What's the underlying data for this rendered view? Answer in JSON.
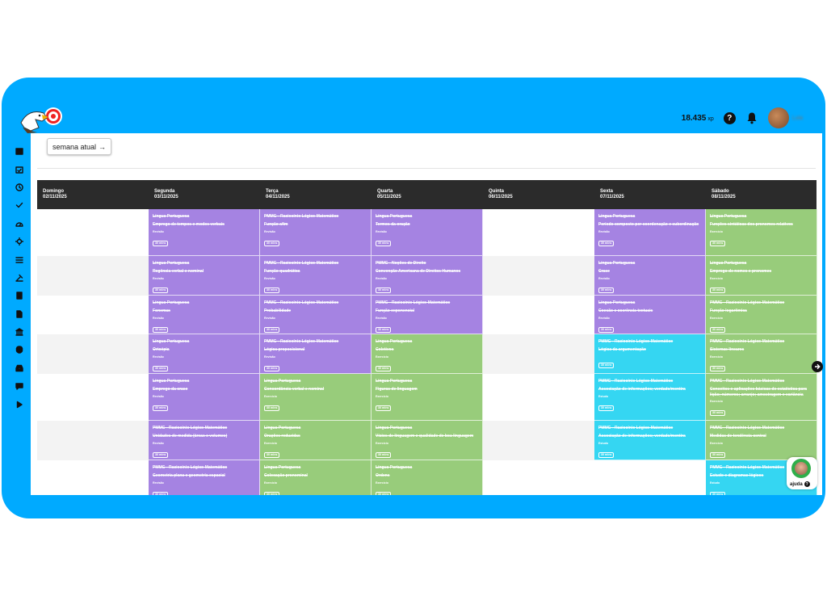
{
  "header": {
    "xp_value": "18.435",
    "xp_unit": "xp",
    "help_glyph": "?",
    "username": "Lula"
  },
  "sidebar_icons": [
    "calendar-icon",
    "calendar-check-icon",
    "clock-icon",
    "check-icon",
    "dashboard-icon",
    "settings-icon",
    "list-icon",
    "tool-icon",
    "book-icon",
    "file-icon",
    "bank-icon",
    "brain-icon",
    "inbox-icon",
    "chat-icon",
    "play-icon"
  ],
  "toolbar": {
    "week_button": "semana atual",
    "arrow": "→"
  },
  "colors": {
    "frame": "#00aaff",
    "purple": "#a583e2",
    "green": "#98cc7b",
    "cyan": "#35d6f2",
    "header": "#2b2b2b"
  },
  "days": [
    {
      "name": "Domingo",
      "date": "02/11/2025"
    },
    {
      "name": "Segunda",
      "date": "03/11/2025"
    },
    {
      "name": "Terça",
      "date": "04/11/2025"
    },
    {
      "name": "Quarta",
      "date": "05/11/2025"
    },
    {
      "name": "Quinta",
      "date": "06/11/2025"
    },
    {
      "name": "Sexta",
      "date": "07/11/2025"
    },
    {
      "name": "Sábado",
      "date": "08/11/2025"
    }
  ],
  "schedule": [
    [
      null,
      {
        "color": "purple",
        "subject": "Língua Portuguesa",
        "topic": "Emprego de tempos e modos verbais",
        "kind": "Revisão",
        "time": "30 mins"
      },
      {
        "color": "purple",
        "subject": "PMMG - Raciocínio Lógico-Matemático",
        "topic": "Função afim",
        "kind": "Revisão",
        "time": "30 mins"
      },
      {
        "color": "purple",
        "subject": "Língua Portuguesa",
        "topic": "Termos da oração",
        "kind": "Revisão",
        "time": "30 mins"
      },
      null,
      {
        "color": "purple",
        "subject": "Língua Portuguesa",
        "topic": "Período composto por coordenação e subordinação",
        "kind": "Revisão",
        "time": "30 mins"
      },
      {
        "color": "green",
        "subject": "Língua Portuguesa",
        "topic": "Funções sintáticas dos pronomes relativos",
        "kind": "Exercício",
        "time": "30 mins"
      }
    ],
    [
      null,
      {
        "color": "purple",
        "subject": "Língua Portuguesa",
        "topic": "Regência verbal e nominal",
        "kind": "Revisão",
        "time": "30 mins"
      },
      {
        "color": "purple",
        "subject": "PMMG - Raciocínio Lógico-Matemático",
        "topic": "Função quadrática",
        "kind": "Revisão",
        "time": "30 mins"
      },
      {
        "color": "purple",
        "subject": "PMMG - Noções de Direito",
        "topic": "Convenção Americana de Direitos Humanos",
        "kind": "Revisão",
        "time": "30 mins"
      },
      null,
      {
        "color": "purple",
        "subject": "Língua Portuguesa",
        "topic": "Crase",
        "kind": "Revisão",
        "time": "30 mins"
      },
      {
        "color": "green",
        "subject": "Língua Portuguesa",
        "topic": "Emprego de nomes e pronomes",
        "kind": "Exercício",
        "time": "30 mins"
      }
    ],
    [
      null,
      {
        "color": "purple",
        "subject": "Língua Portuguesa",
        "topic": "Fonemas",
        "kind": "Revisão",
        "time": "30 mins"
      },
      {
        "color": "purple",
        "subject": "PMMG - Raciocínio Lógico-Matemático",
        "topic": "Probabilidade",
        "kind": "Revisão",
        "time": "30 mins"
      },
      {
        "color": "purple",
        "subject": "PMMG - Raciocínio Lógico-Matemático",
        "topic": "Função exponencial",
        "kind": "Revisão",
        "time": "30 mins"
      },
      null,
      {
        "color": "purple",
        "subject": "Língua Portuguesa",
        "topic": "Coesão e coerência textuais",
        "kind": "Revisão",
        "time": "30 mins"
      },
      {
        "color": "green",
        "subject": "PMMG - Raciocínio Lógico-Matemático",
        "topic": "Função logarítmica",
        "kind": "Exercício",
        "time": "30 mins"
      }
    ],
    [
      null,
      {
        "color": "purple",
        "subject": "Língua Portuguesa",
        "topic": "Ortoépia",
        "kind": "Revisão",
        "time": "30 mins"
      },
      {
        "color": "purple",
        "subject": "PMMG - Raciocínio Lógico-Matemático",
        "topic": "Lógica proposicional",
        "kind": "Revisão",
        "time": "30 mins"
      },
      {
        "color": "green",
        "subject": "Língua Portuguesa",
        "topic": "Coletivos",
        "kind": "Exercício",
        "time": "30 mins"
      },
      null,
      {
        "color": "cyan",
        "subject": "PMMG - Raciocínio Lógico-Matemático",
        "topic": "Lógica da argumentação",
        "kind": "",
        "time": "30 mins"
      },
      {
        "color": "green",
        "subject": "PMMG - Raciocínio Lógico-Matemático",
        "topic": "Sistemas lineares",
        "kind": "Exercício",
        "time": "30 mins"
      }
    ],
    [
      null,
      {
        "color": "purple",
        "subject": "Língua Portuguesa",
        "topic": "Emprego da crase",
        "kind": "Revisão",
        "time": "30 mins"
      },
      {
        "color": "green",
        "subject": "Língua Portuguesa",
        "topic": "Concordância verbal e nominal",
        "kind": "Exercício",
        "time": "30 mins"
      },
      {
        "color": "green",
        "subject": "Língua Portuguesa",
        "topic": "Figuras de linguagem",
        "kind": "Exercício",
        "time": "30 mins"
      },
      null,
      {
        "color": "cyan",
        "subject": "PMMG - Raciocínio Lógico-Matemático",
        "topic": "Associação de informações; verdade/mentira",
        "kind": "Estudo",
        "time": "30 mins"
      },
      {
        "color": "green",
        "subject": "PMMG - Raciocínio Lógico-Matemático",
        "topic": "Conceitos e aplicações básicas de estatística para lição; números; arranjo; amostragem e variância",
        "kind": "Exercício",
        "time": "30 mins"
      }
    ],
    [
      null,
      {
        "color": "purple",
        "subject": "PMMG - Raciocínio Lógico-Matemático",
        "topic": "Unidades de medida (áreas e volumes)",
        "kind": "Revisão",
        "time": "30 mins"
      },
      {
        "color": "green",
        "subject": "Língua Portuguesa",
        "topic": "Orações reduzidas",
        "kind": "Exercício",
        "time": "30 mins"
      },
      {
        "color": "green",
        "subject": "Língua Portuguesa",
        "topic": "Vícios de linguagem e qualidade de boa linguagem",
        "kind": "Exercício",
        "time": "30 mins"
      },
      null,
      {
        "color": "cyan",
        "subject": "PMMG - Raciocínio Lógico-Matemático",
        "topic": "Associação de informações; verdade/mentira",
        "kind": "Estudo",
        "time": "30 mins"
      },
      {
        "color": "green",
        "subject": "PMMG - Raciocínio Lógico-Matemático",
        "topic": "Medidas de tendência central",
        "kind": "Exercício",
        "time": "30 mins"
      }
    ],
    [
      null,
      {
        "color": "purple",
        "subject": "PMMG - Raciocínio Lógico-Matemático",
        "topic": "Geometria plana e geometria espacial",
        "kind": "Revisão",
        "time": "30 mins"
      },
      {
        "color": "green",
        "subject": "Língua Portuguesa",
        "topic": "Colocação pronominal",
        "kind": "Exercício",
        "time": "30 mins"
      },
      {
        "color": "green",
        "subject": "Língua Portuguesa",
        "topic": "Ordens",
        "kind": "Exercício",
        "time": "30 mins"
      },
      null,
      null,
      {
        "color": "cyan",
        "subject": "PMMG - Raciocínio Lógico-Matemático",
        "topic": "Estudo e diagramas lógicos",
        "kind": "Estudo",
        "time": "30 mins"
      }
    ]
  ],
  "help_button": {
    "label": "ajuda",
    "glyph": "?"
  }
}
